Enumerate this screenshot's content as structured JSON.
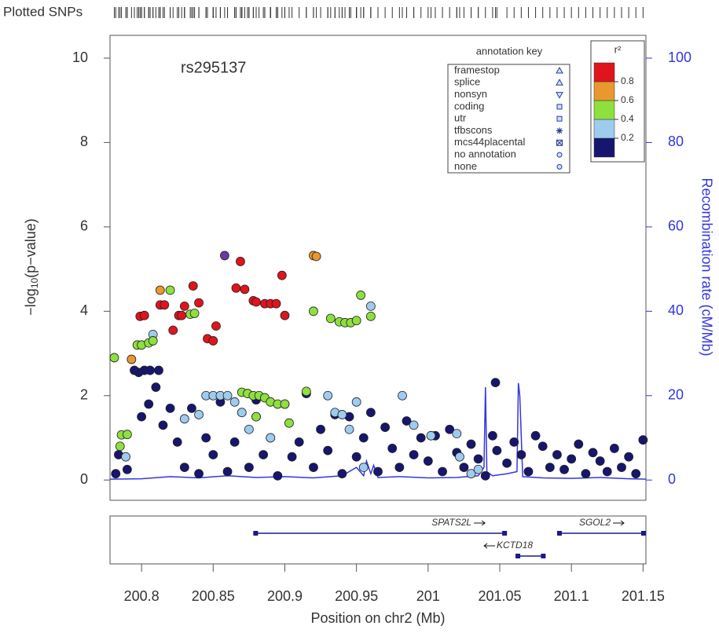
{
  "chart_data": {
    "type": "scatter",
    "top_label": "Plotted SNPs",
    "annotation": "rs295137",
    "xlabel": "Position on chr2 (Mb)",
    "ylabel_parts": [
      "−log",
      "10",
      "(p−value)"
    ],
    "y2label": "Recombination rate (cM/Mb)",
    "y2color": "#3535e0",
    "xlim": [
      200.778,
      201.152
    ],
    "xticks": [
      200.8,
      200.85,
      200.9,
      200.95,
      201,
      201.05,
      201.1,
      201.15
    ],
    "ylim": [
      -0.48,
      10.54
    ],
    "yticks": [
      0,
      2,
      4,
      6,
      8,
      10
    ],
    "y2lim": [
      -4.8,
      105.4
    ],
    "y2ticks": [
      0,
      20,
      40,
      60,
      80,
      100
    ],
    "series": [
      {
        "color": "#16166e",
        "x": [
          200.782,
          200.784,
          200.79,
          200.795,
          200.798,
          200.802,
          200.806,
          200.812,
          200.81,
          200.805,
          200.8,
          200.815,
          200.82,
          200.825,
          200.83,
          200.835,
          200.84,
          200.845,
          200.85,
          200.855,
          200.86,
          200.865,
          200.87,
          200.875,
          200.88,
          200.885,
          200.89,
          200.895,
          200.9,
          200.905,
          200.91,
          200.915,
          200.92,
          200.925,
          200.93,
          200.935,
          200.94,
          200.945,
          200.95,
          200.955,
          200.96,
          200.965,
          200.97,
          200.975,
          200.98,
          200.985,
          200.99,
          200.995,
          201.0,
          201.005,
          201.01,
          201.015,
          201.02,
          201.025,
          201.03,
          201.035,
          201.04,
          201.045,
          201.048,
          201.047,
          201.055,
          201.06,
          201.065,
          201.07,
          201.075,
          201.08,
          201.085,
          201.09,
          201.095,
          201.1,
          201.105,
          201.11,
          201.115,
          201.12,
          201.125,
          201.13,
          201.135,
          201.14,
          201.145,
          201.15
        ],
        "values": [
          0.15,
          0.6,
          0.25,
          2.6,
          2.55,
          2.6,
          2.6,
          2.6,
          2.2,
          1.8,
          1.5,
          1.3,
          1.7,
          0.9,
          0.3,
          1.7,
          0.15,
          1.0,
          0.6,
          1.85,
          0.2,
          0.9,
          1.6,
          0.3,
          1.9,
          0.6,
          1.0,
          0.1,
          1.8,
          0.55,
          0.9,
          2.05,
          0.3,
          1.2,
          0.7,
          1.55,
          0.15,
          1.5,
          0.55,
          1.0,
          1.6,
          0.2,
          1.25,
          0.75,
          0.3,
          1.4,
          0.6,
          1.0,
          0.45,
          1.05,
          0.2,
          1.2,
          0.65,
          0.3,
          0.85,
          0.5,
          0.1,
          1.05,
          0.7,
          2.31,
          0.4,
          0.9,
          0.6,
          0.2,
          1.05,
          0.8,
          0.3,
          0.6,
          0.25,
          0.5,
          0.85,
          0.15,
          0.65,
          0.45,
          0.2,
          0.75,
          0.3,
          0.55,
          0.15,
          0.95
        ]
      },
      {
        "color": "#9fcbef",
        "x": [
          200.789,
          200.808,
          200.83,
          200.84,
          200.845,
          200.85,
          200.855,
          200.86,
          200.865,
          200.87,
          200.875,
          200.88,
          200.89,
          200.93,
          200.935,
          200.94,
          200.945,
          200.95,
          200.955,
          200.96,
          200.982,
          200.99,
          201.002,
          201.02,
          201.022,
          201.03,
          201.035
        ],
        "values": [
          0.55,
          3.45,
          1.45,
          1.55,
          2.0,
          2.0,
          2.0,
          2.0,
          1.85,
          1.6,
          1.2,
          1.5,
          1.0,
          2.0,
          1.6,
          1.55,
          1.2,
          1.85,
          0.3,
          4.12,
          2.0,
          1.3,
          1.05,
          1.1,
          0.55,
          0.15,
          0.25
        ]
      },
      {
        "color": "#8ee03e",
        "x": [
          200.781,
          200.786,
          200.79,
          200.785,
          200.797,
          200.8,
          200.805,
          200.808,
          200.82,
          200.834,
          200.837,
          200.87,
          200.874,
          200.878,
          200.882,
          200.886,
          200.89,
          200.895,
          200.9,
          200.903,
          200.88,
          200.915,
          200.932,
          200.938,
          200.942,
          200.946,
          200.95,
          200.953,
          200.96,
          200.92
        ],
        "values": [
          2.9,
          1.07,
          1.08,
          0.8,
          3.2,
          3.2,
          3.25,
          3.3,
          4.5,
          3.93,
          3.95,
          2.08,
          2.05,
          2.0,
          2.0,
          1.95,
          1.85,
          1.8,
          1.8,
          1.35,
          1.5,
          2.1,
          3.83,
          3.75,
          3.73,
          3.73,
          3.78,
          4.38,
          3.88,
          4.0
        ]
      },
      {
        "color": "#e8982e",
        "x": [
          200.793,
          200.813,
          200.92,
          200.922
        ],
        "values": [
          2.86,
          4.5,
          5.32,
          5.3
        ]
      },
      {
        "color": "#e0141c",
        "x": [
          200.799,
          200.802,
          200.813,
          200.816,
          200.822,
          200.826,
          200.828,
          200.83,
          200.836,
          200.84,
          200.846,
          200.85,
          200.852,
          200.869,
          200.866,
          200.872,
          200.878,
          200.88,
          200.886,
          200.89,
          200.894,
          200.898,
          200.9
        ],
        "values": [
          3.88,
          3.9,
          4.15,
          4.15,
          3.55,
          3.9,
          3.9,
          4.12,
          4.6,
          4.2,
          3.35,
          3.3,
          3.65,
          5.18,
          4.55,
          4.52,
          4.25,
          4.22,
          4.18,
          4.18,
          4.18,
          4.85,
          3.9
        ]
      }
    ],
    "index_snp": {
      "color": "#6b3aa0",
      "x": [
        200.858
      ],
      "values": [
        5.32
      ]
    },
    "recombination": {
      "axis": "y2",
      "color": "#3535e0",
      "x": [
        200.778,
        200.8,
        200.82,
        200.84,
        200.86,
        200.88,
        200.9,
        200.92,
        200.94,
        200.95,
        200.955,
        200.957,
        200.96,
        200.962,
        200.965,
        200.98,
        201.0,
        201.02,
        201.035,
        201.039,
        201.04,
        201.041,
        201.045,
        201.055,
        201.062,
        201.063,
        201.064,
        201.066,
        201.08,
        201.1,
        201.12,
        201.14,
        201.152
      ],
      "values": [
        0.2,
        0.3,
        0.8,
        0.5,
        1.0,
        0.6,
        0.8,
        0.5,
        1.0,
        3.0,
        1.0,
        4.5,
        1.5,
        3.5,
        0.6,
        0.8,
        0.5,
        0.6,
        1.0,
        3.0,
        22,
        2.0,
        1.0,
        1.5,
        2.0,
        23,
        20,
        0.8,
        0.5,
        0.4,
        0.6,
        0.3,
        0.2
      ]
    },
    "r2_legend": {
      "title": "r²",
      "bins": [
        0,
        0.2,
        0.4,
        0.6,
        0.8,
        1
      ],
      "colors": [
        "#16166e",
        "#9fcbef",
        "#8ee03e",
        "#e8982e",
        "#e0141c"
      ],
      "ticks": [
        0.2,
        0.4,
        0.6,
        0.8
      ]
    },
    "annotation_key": {
      "title": "annotation key",
      "entries": [
        "framestop",
        "splice",
        "nonsyn",
        "coding",
        "utr",
        "tfbscons",
        "mcs44placental",
        "no annotation",
        "none"
      ]
    },
    "genes": [
      {
        "name": "SPATS2L",
        "start": 200.878,
        "end": 201.055,
        "strand": "+"
      },
      {
        "name": "KCTD18",
        "start": 201.061,
        "end": 201.082,
        "strand": "-"
      },
      {
        "name": "SGOL2",
        "start": 201.09,
        "end": 201.152,
        "strand": "+"
      }
    ]
  }
}
